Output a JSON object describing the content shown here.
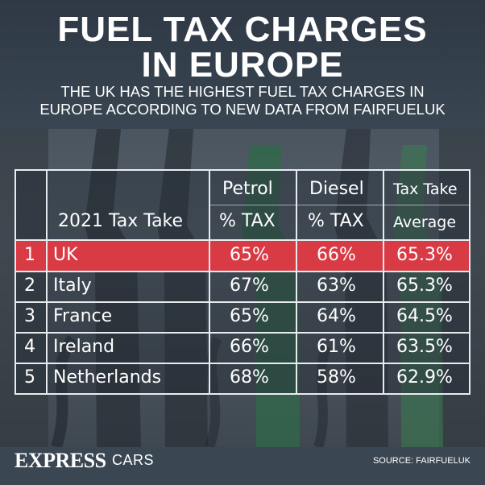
{
  "title_line1": "FUEL TAX CHARGES",
  "title_line2": "IN EUROPE",
  "subtitle_line1": "THE UK HAS THE HIGHEST FUEL TAX CHARGES IN",
  "subtitle_line2": "EUROPE ACCORDING TO NEW DATA FROM FAIRFUELUK",
  "table": {
    "header": {
      "label": "2021 Tax Take",
      "petrol_top": "Petrol",
      "petrol_bottom": "% TAX",
      "diesel_top": "Diesel",
      "diesel_bottom": "% TAX",
      "avg_top": "Tax Take",
      "avg_bottom": "Average"
    },
    "rows": [
      {
        "rank": "1",
        "country": "UK",
        "petrol": "65%",
        "diesel": "66%",
        "average": "65.3%"
      },
      {
        "rank": "2",
        "country": "Italy",
        "petrol": "67%",
        "diesel": "63%",
        "average": "65.3%"
      },
      {
        "rank": "3",
        "country": "France",
        "petrol": "65%",
        "diesel": "64%",
        "average": "64.5%"
      },
      {
        "rank": "4",
        "country": "Ireland",
        "petrol": "66%",
        "diesel": "61%",
        "average": "63.5%"
      },
      {
        "rank": "5",
        "country": "Netherlands",
        "petrol": "68%",
        "diesel": "58%",
        "average": "62.9%"
      }
    ]
  },
  "footer": {
    "brand": "EXPRESS",
    "brand_sub": "CARS",
    "source": "SOURCE: FAIRFUELUK"
  },
  "colors": {
    "highlight": "#d93b45",
    "header_bg": "#2f3945",
    "text": "#ffffff"
  }
}
